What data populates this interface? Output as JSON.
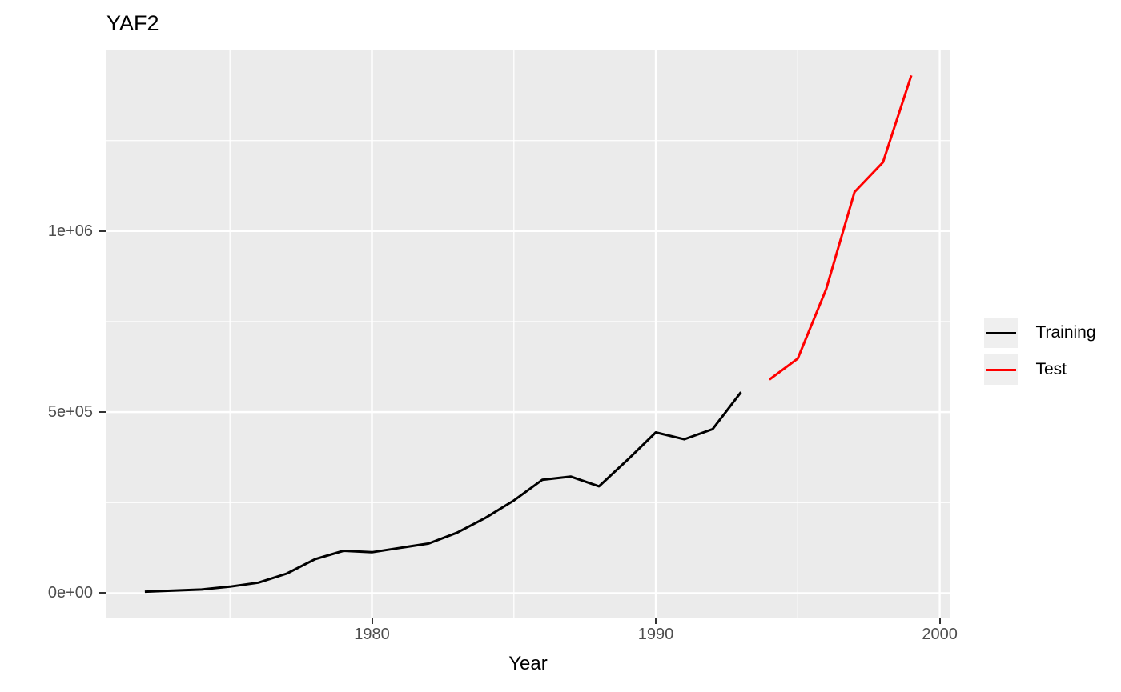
{
  "chart_data": {
    "type": "line",
    "title": "YAF2",
    "xlabel": "Year",
    "ylabel": "",
    "grid": true,
    "legend_position": "right",
    "panel_bg": "#EBEBEB",
    "gridline_color": "#FFFFFF",
    "tick_color": "#333333",
    "axis_text_color": "#4D4D4D",
    "xlim": [
      1970.65,
      2000.35
    ],
    "ylim": [
      -67600,
      1501300
    ],
    "x_ticks": {
      "labels": [
        "1980",
        "1990",
        "2000"
      ],
      "values": [
        1980,
        1990,
        2000
      ]
    },
    "x_minor": [
      1975,
      1985,
      1995
    ],
    "y_ticks": {
      "labels": [
        "0e+00",
        "5e+05",
        "1e+06"
      ],
      "values": [
        0,
        500000,
        1000000
      ]
    },
    "y_minor": [
      250000,
      750000,
      1250000
    ],
    "series": [
      {
        "name": "Training",
        "color": "#000000",
        "x": [
          1972,
          1973,
          1974,
          1975,
          1976,
          1977,
          1978,
          1979,
          1980,
          1981,
          1982,
          1983,
          1984,
          1985,
          1986,
          1987,
          1988,
          1989,
          1990,
          1991,
          1992,
          1993
        ],
        "values": [
          4000,
          7000,
          10000,
          18000,
          29000,
          54000,
          94000,
          117000,
          113000,
          125000,
          137000,
          167000,
          208000,
          256000,
          313000,
          322000,
          295000,
          368000,
          444000,
          425000,
          453000,
          555000
        ]
      },
      {
        "name": "Test",
        "color": "#FF0000",
        "x": [
          1994,
          1995,
          1996,
          1997,
          1998,
          1999
        ],
        "values": [
          590000,
          648000,
          840000,
          1108000,
          1190000,
          1430000
        ]
      }
    ]
  }
}
